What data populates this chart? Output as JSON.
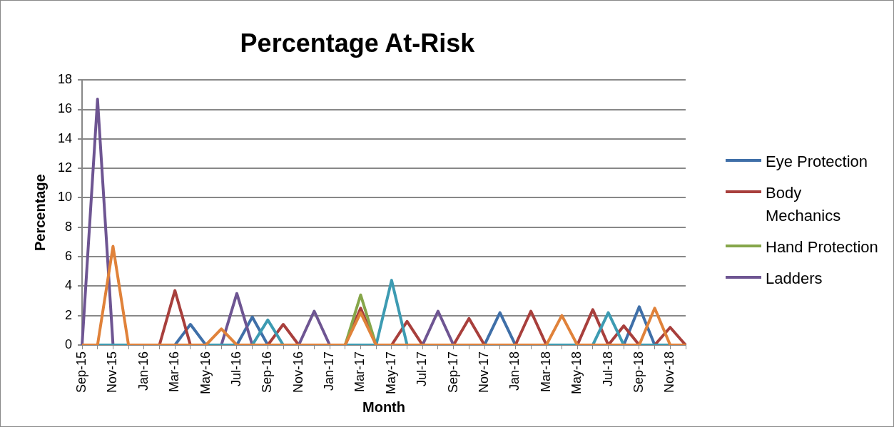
{
  "chart_data": {
    "type": "line",
    "title": "Percentage At-Risk",
    "xlabel": "Month",
    "ylabel": "Percentage",
    "categories": [
      "Sep-15",
      null,
      "Nov-15",
      null,
      "Jan-16",
      null,
      "Mar-16",
      null,
      "May-16",
      null,
      "Jul-16",
      null,
      "Sep-16",
      null,
      "Nov-16",
      null,
      "Jan-17",
      null,
      "Mar-17",
      null,
      "May-17",
      null,
      "Jul-17",
      null,
      "Sep-17",
      null,
      "Nov-17",
      null,
      "Jan-18",
      null,
      "Mar-18",
      null,
      "May-18",
      null,
      "Jul-18",
      null,
      "Sep-18",
      null,
      "Nov-18",
      null
    ],
    "series": [
      {
        "name": "Eye Protection",
        "color": "#3f6fa8",
        "values": [
          null,
          null,
          null,
          null,
          null,
          null,
          0,
          1.4,
          0,
          null,
          0,
          1.9,
          0,
          null,
          null,
          null,
          null,
          null,
          null,
          null,
          null,
          null,
          null,
          null,
          null,
          null,
          0,
          2.2,
          0,
          null,
          null,
          null,
          null,
          null,
          null,
          0,
          2.6,
          0,
          null,
          null
        ]
      },
      {
        "name": "Body Mechanics",
        "color": "#a83f3c",
        "values": [
          null,
          null,
          null,
          null,
          null,
          0,
          3.7,
          0,
          null,
          null,
          null,
          null,
          0,
          1.4,
          0,
          null,
          null,
          0,
          2.5,
          0,
          0,
          1.6,
          0,
          null,
          0,
          1.8,
          0,
          null,
          0,
          2.3,
          0,
          null,
          0,
          2.4,
          0,
          1.3,
          0,
          0,
          1.2,
          0
        ]
      },
      {
        "name": "Hand Protection",
        "color": "#86a64a",
        "values": [
          null,
          null,
          null,
          null,
          null,
          null,
          null,
          null,
          null,
          null,
          null,
          null,
          null,
          null,
          null,
          null,
          null,
          0,
          3.4,
          0,
          null,
          null,
          null,
          null,
          null,
          null,
          null,
          null,
          null,
          null,
          null,
          null,
          null,
          null,
          null,
          null,
          null,
          null,
          null,
          null
        ]
      },
      {
        "name": "Ladders",
        "color": "#6e5592",
        "values": [
          0,
          16.7,
          0,
          null,
          null,
          null,
          null,
          null,
          null,
          0,
          3.5,
          0,
          null,
          null,
          0,
          2.3,
          0,
          null,
          null,
          null,
          null,
          null,
          0,
          2.3,
          0,
          null,
          null,
          null,
          null,
          null,
          null,
          null,
          null,
          null,
          null,
          null,
          null,
          null,
          null,
          null
        ]
      },
      {
        "color": "#3d9bb2",
        "values": [
          null,
          0,
          0,
          0,
          null,
          null,
          null,
          null,
          0,
          0,
          0,
          0,
          1.7,
          0,
          null,
          null,
          null,
          0,
          0,
          0,
          4.4,
          0,
          null,
          null,
          null,
          null,
          null,
          null,
          null,
          null,
          0,
          0,
          0,
          0,
          2.2,
          0,
          0,
          0,
          0,
          null
        ]
      },
      {
        "color": "#e0823a",
        "values": [
          0,
          0,
          6.7,
          0,
          0,
          0,
          0,
          0,
          0,
          1.1,
          0,
          0,
          0,
          0,
          0,
          0,
          0,
          0,
          2.2,
          0,
          0,
          0,
          0,
          0,
          0,
          0,
          0,
          0,
          0,
          0,
          0,
          2.0,
          0,
          0,
          0,
          0,
          0,
          2.5,
          0,
          0
        ]
      }
    ],
    "ylim": [
      0,
      18
    ],
    "yticks": [
      0,
      2,
      4,
      6,
      8,
      10,
      12,
      14,
      16,
      18
    ],
    "grid": "y",
    "legend": "right",
    "marker": "none",
    "line_style": "solid"
  }
}
